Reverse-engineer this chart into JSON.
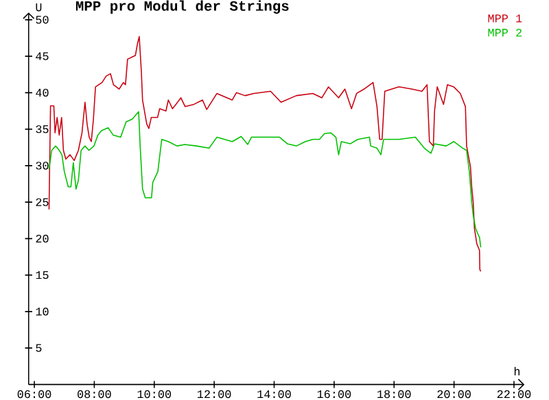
{
  "chart_data": {
    "type": "line",
    "title": "MPP pro Modul der Strings",
    "xlabel": "h",
    "ylabel": "U",
    "xlim": [
      5.81,
      22.35
    ],
    "ylim": [
      0,
      51
    ],
    "xticks": [
      {
        "value": 6,
        "label": "06:00"
      },
      {
        "value": 8,
        "label": "08:00"
      },
      {
        "value": 10,
        "label": "10:00"
      },
      {
        "value": 12,
        "label": "12:00"
      },
      {
        "value": 14,
        "label": "14:00"
      },
      {
        "value": 16,
        "label": "16:00"
      },
      {
        "value": 18,
        "label": "18:00"
      },
      {
        "value": 20,
        "label": "20:00"
      },
      {
        "value": 22,
        "label": "22:00"
      }
    ],
    "yticks": [
      5,
      10,
      15,
      20,
      25,
      30,
      35,
      40,
      45,
      50
    ],
    "legend": "top right",
    "marker": "none",
    "line_style": "solid",
    "series": [
      {
        "name": "MPP 1",
        "color": "#c8000f",
        "x": [
          6.49,
          6.54,
          6.65,
          6.69,
          6.76,
          6.83,
          6.91,
          6.97,
          7.05,
          7.19,
          7.33,
          7.47,
          7.59,
          7.69,
          7.76,
          7.83,
          7.9,
          7.97,
          8.04,
          8.26,
          8.4,
          8.54,
          8.64,
          8.83,
          8.97,
          9.04,
          9.11,
          9.26,
          9.37,
          9.44,
          9.5,
          9.57,
          9.61,
          9.75,
          9.82,
          9.9,
          10.11,
          10.18,
          10.39,
          10.47,
          10.61,
          10.89,
          11.03,
          11.32,
          11.61,
          11.75,
          12.09,
          12.6,
          12.74,
          13.03,
          13.32,
          13.88,
          14.23,
          14.74,
          15.29,
          15.59,
          15.81,
          16.15,
          16.36,
          16.58,
          16.75,
          17.0,
          17.3,
          17.43,
          17.52,
          17.6,
          17.69,
          18.16,
          18.59,
          18.93,
          19.1,
          19.18,
          19.31,
          19.35,
          19.44,
          19.65,
          19.78,
          19.99,
          20.21,
          20.38,
          20.42,
          20.55,
          20.59,
          20.64,
          20.68,
          20.76,
          20.85,
          20.86,
          20.89
        ],
        "values": [
          24.0,
          38.2,
          38.2,
          34.5,
          36.6,
          34.2,
          36.6,
          32.1,
          30.9,
          31.5,
          30.7,
          32.1,
          34.5,
          38.7,
          35.7,
          33.9,
          33.3,
          36.3,
          40.8,
          41.4,
          42.3,
          42.6,
          41.1,
          40.5,
          41.4,
          41.1,
          44.6,
          44.9,
          45.1,
          46.7,
          47.7,
          42.9,
          39.0,
          35.7,
          35.1,
          36.6,
          36.6,
          37.8,
          37.5,
          39.0,
          37.8,
          39.3,
          38.1,
          38.4,
          39.0,
          37.7,
          39.9,
          39.0,
          40.0,
          39.6,
          39.9,
          40.2,
          38.7,
          39.6,
          39.9,
          39.3,
          40.8,
          39.3,
          40.5,
          37.8,
          39.9,
          40.5,
          41.4,
          38.1,
          33.6,
          33.6,
          40.2,
          40.8,
          40.5,
          40.2,
          41.1,
          33.3,
          32.7,
          37.5,
          40.8,
          38.4,
          41.1,
          40.8,
          39.9,
          38.1,
          32.7,
          29.8,
          27.1,
          25.0,
          21.4,
          19.3,
          18.4,
          15.8,
          15.5
        ]
      },
      {
        "name": "MPP 2",
        "color": "#00c000",
        "x": [
          6.49,
          6.58,
          6.71,
          6.83,
          6.92,
          7.0,
          7.13,
          7.22,
          7.3,
          7.39,
          7.47,
          7.56,
          7.69,
          7.82,
          7.99,
          8.12,
          8.24,
          8.46,
          8.63,
          8.88,
          9.06,
          9.27,
          9.48,
          9.53,
          9.61,
          9.7,
          9.91,
          9.95,
          10.12,
          10.25,
          10.47,
          10.76,
          11.02,
          11.41,
          11.83,
          12.09,
          12.6,
          12.9,
          13.12,
          13.24,
          13.88,
          14.18,
          14.44,
          14.74,
          15.04,
          15.29,
          15.51,
          15.68,
          15.89,
          16.06,
          16.15,
          16.24,
          16.54,
          16.79,
          17.18,
          17.22,
          17.43,
          17.56,
          17.65,
          18.16,
          18.71,
          19.01,
          19.23,
          19.35,
          19.74,
          19.99,
          20.29,
          20.42,
          20.51,
          20.59,
          20.64,
          20.72,
          20.81,
          20.85,
          20.89
        ],
        "values": [
          29.5,
          32.1,
          32.7,
          32.1,
          31.5,
          29.2,
          27.1,
          27.1,
          30.4,
          26.8,
          28.0,
          32.1,
          32.7,
          32.1,
          32.7,
          34.2,
          34.8,
          35.2,
          34.2,
          33.9,
          36.0,
          36.4,
          37.4,
          32.7,
          26.8,
          25.6,
          25.6,
          27.7,
          29.2,
          33.6,
          33.3,
          32.7,
          32.9,
          32.7,
          32.4,
          33.9,
          33.3,
          34.0,
          32.9,
          33.9,
          33.9,
          33.9,
          33.0,
          32.7,
          33.3,
          33.6,
          33.6,
          34.4,
          34.5,
          33.9,
          31.5,
          33.3,
          33.0,
          33.6,
          33.9,
          32.7,
          32.4,
          31.5,
          33.6,
          33.6,
          33.9,
          32.4,
          31.7,
          33.0,
          32.7,
          33.3,
          32.4,
          32.1,
          29.2,
          25.0,
          23.2,
          21.4,
          20.5,
          20.2,
          18.8
        ]
      }
    ]
  }
}
